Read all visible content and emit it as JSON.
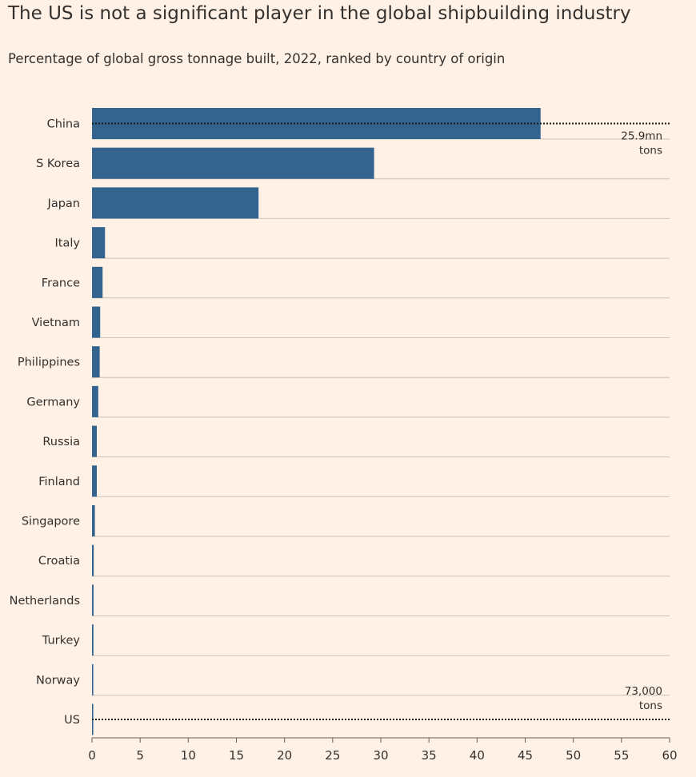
{
  "title": "The US is not a significant player in the global shipbuilding industry",
  "subtitle": "Percentage of global gross tonnage built, 2022, ranked by country of origin",
  "colors": {
    "background": "#fff1e5",
    "bar": "#33638f",
    "gridline": "#ccc1b7",
    "text": "#33302e",
    "reference_line": "#1a1a1a"
  },
  "chart_data": {
    "type": "bar",
    "orientation": "horizontal",
    "title": "The US is not a significant player in the global shipbuilding industry",
    "subtitle": "Percentage of global gross tonnage built, 2022, ranked by country of origin",
    "xlabel": "",
    "ylabel": "",
    "xlim": [
      0,
      60
    ],
    "xticks": [
      0,
      5,
      10,
      15,
      20,
      25,
      30,
      35,
      40,
      45,
      50,
      55,
      60
    ],
    "grid": "horizontal row lines",
    "categories": [
      "China",
      "S Korea",
      "Japan",
      "Italy",
      "France",
      "Vietnam",
      "Philippines",
      "Germany",
      "Russia",
      "Finland",
      "Singapore",
      "Croatia",
      "Netherlands",
      "Turkey",
      "Norway",
      "US"
    ],
    "values": [
      46.6,
      29.3,
      17.3,
      1.35,
      1.1,
      0.85,
      0.8,
      0.65,
      0.5,
      0.5,
      0.3,
      0.18,
      0.16,
      0.15,
      0.13,
      0.13
    ],
    "annotations": [
      {
        "category": "China",
        "lines": [
          "25.9mn",
          "tons"
        ]
      },
      {
        "category": "US",
        "lines": [
          "73,000",
          "tons"
        ]
      }
    ]
  }
}
